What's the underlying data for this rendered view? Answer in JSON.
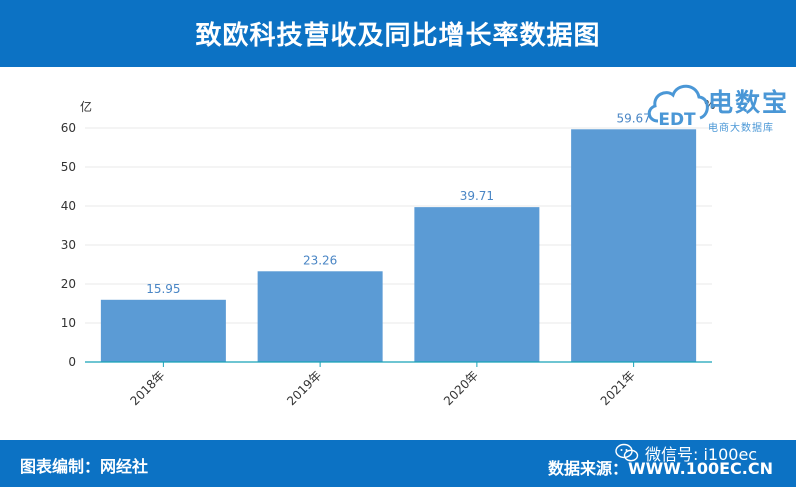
{
  "header": {
    "title": "致欧科技营收及同比增长率数据图"
  },
  "chart_data": {
    "type": "bar",
    "categories": [
      "2018年",
      "2019年",
      "2020年",
      "2021年"
    ],
    "values": [
      15.95,
      23.26,
      39.71,
      59.67
    ],
    "data_labels": [
      "15.95",
      "23.26",
      "39.71",
      "59.67"
    ],
    "ylabel": "亿",
    "secondary_ylabel": "%",
    "ylim": [
      0,
      60
    ],
    "yticks": [
      "0",
      "10",
      "20",
      "30",
      "40",
      "50",
      "60"
    ],
    "grid": true,
    "bar_color": "#5b9bd5",
    "label_color": "#4a86c5"
  },
  "watermark": {
    "brand": "电数宝",
    "sub": "电商大数据库",
    "logo_letters": "EDT",
    "color": "#4a97d6"
  },
  "footer": {
    "left": "图表编制：网经社",
    "right": "数据来源：WWW.100EC.CN",
    "wechat": "微信号: i100ec",
    "bg_color": "#0c72c4"
  }
}
